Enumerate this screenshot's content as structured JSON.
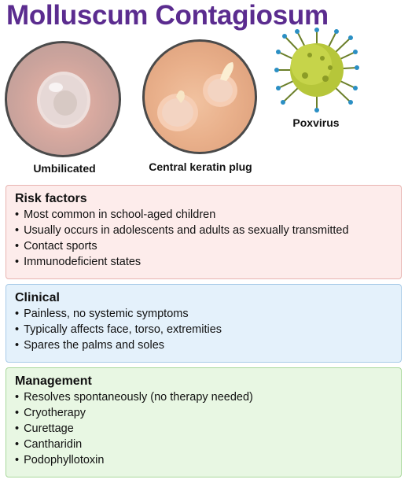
{
  "title": "Molluscum Contagiosum",
  "images": [
    {
      "caption": "Umbilicated"
    },
    {
      "caption": "Central keratin plug"
    },
    {
      "caption": "Poxvirus"
    }
  ],
  "colors": {
    "title": "#5b2c8f",
    "risk_bg": "#fdeceb",
    "clinical_bg": "#e4f1fb",
    "management_bg": "#e8f7e3"
  },
  "sections": {
    "risk": {
      "heading": "Risk factors",
      "items": [
        "Most common in school-aged children",
        "Usually occurs in adolescents and adults as sexually transmitted",
        "Contact sports",
        "Immunodeficient states"
      ]
    },
    "clinical": {
      "heading": "Clinical",
      "items": [
        "Painless, no systemic symptoms",
        "Typically affects face, torso, extremities",
        "Spares the palms and soles"
      ]
    },
    "management": {
      "heading": "Management",
      "items": [
        "Resolves spontaneously (no therapy needed)",
        "Cryotherapy",
        "Curettage",
        "Cantharidin",
        "Podophyllotoxin"
      ]
    }
  }
}
